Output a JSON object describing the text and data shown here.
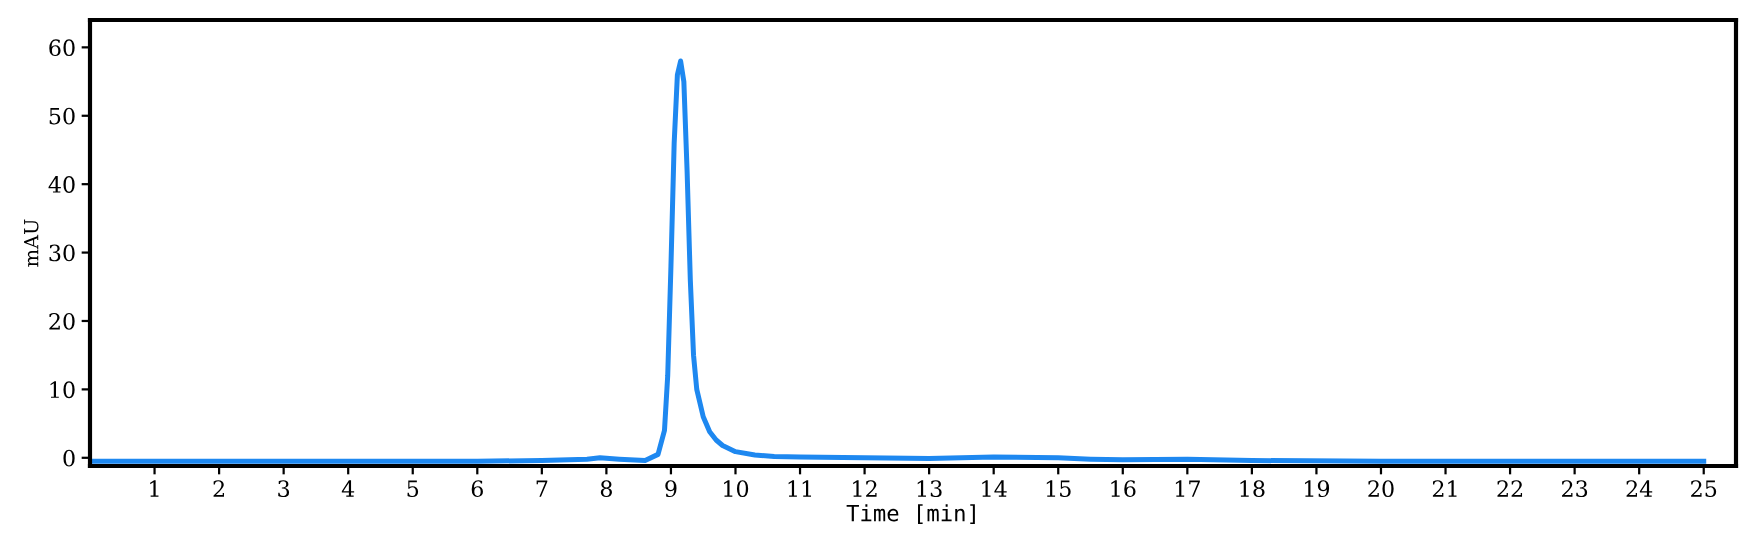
{
  "chart_data": {
    "type": "line",
    "xlabel": "Time [min]",
    "ylabel": "mAU",
    "xlim": [
      0,
      25.5
    ],
    "ylim": [
      -1.2,
      64
    ],
    "xticks": [
      1,
      2,
      3,
      4,
      5,
      6,
      7,
      8,
      9,
      10,
      11,
      12,
      13,
      14,
      15,
      16,
      17,
      18,
      19,
      20,
      21,
      22,
      23,
      24,
      25
    ],
    "yticks": [
      0,
      10,
      20,
      30,
      40,
      50,
      60
    ],
    "grid": false,
    "series": [
      {
        "color": "#1e88f0",
        "x": [
          0,
          2,
          4,
          6,
          7,
          7.7,
          7.9,
          8.2,
          8.6,
          8.8,
          8.9,
          8.95,
          9.0,
          9.05,
          9.1,
          9.15,
          9.2,
          9.25,
          9.3,
          9.35,
          9.4,
          9.5,
          9.6,
          9.7,
          9.8,
          10.0,
          10.3,
          10.6,
          11,
          12,
          13,
          14,
          15,
          15.5,
          16,
          17,
          18,
          20,
          22,
          25
        ],
        "values": [
          -0.5,
          -0.5,
          -0.5,
          -0.5,
          -0.4,
          -0.2,
          0.0,
          -0.2,
          -0.4,
          0.5,
          4,
          12,
          28,
          46,
          56,
          58,
          55,
          42,
          26,
          15,
          10,
          6,
          3.8,
          2.6,
          1.8,
          0.9,
          0.4,
          0.2,
          0.1,
          0,
          -0.1,
          0.1,
          0,
          -0.2,
          -0.3,
          -0.2,
          -0.4,
          -0.5,
          -0.5,
          -0.5
        ]
      }
    ]
  }
}
